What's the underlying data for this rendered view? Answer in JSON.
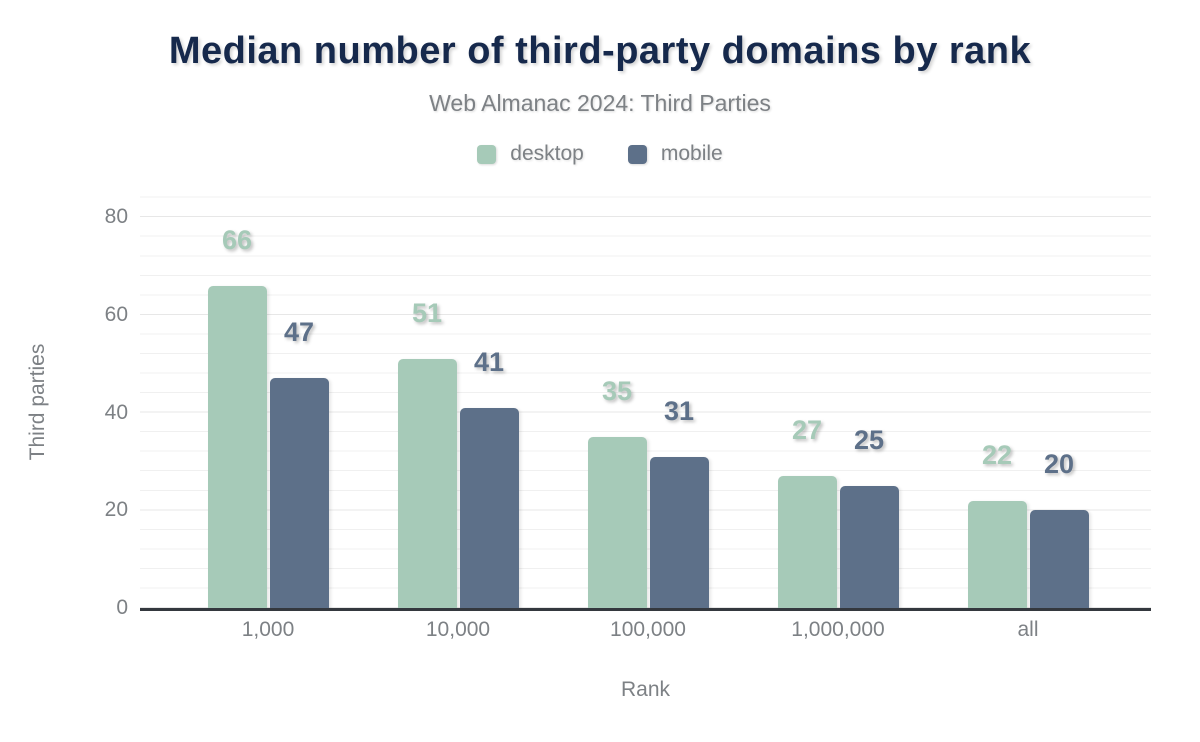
{
  "chart_data": {
    "type": "bar",
    "title": "Median number of third-party domains by rank",
    "subtitle": "Web Almanac 2024: Third Parties",
    "categories": [
      "1,000",
      "10,000",
      "100,000",
      "1,000,000",
      "all"
    ],
    "series": [
      {
        "name": "desktop",
        "color": "#a6cab8",
        "values": [
          66,
          51,
          35,
          27,
          22
        ]
      },
      {
        "name": "mobile",
        "color": "#5d7089",
        "values": [
          47,
          41,
          31,
          25,
          20
        ]
      }
    ],
    "xlabel": "Rank",
    "ylabel": "Third parties",
    "ylim": [
      0,
      80
    ],
    "yticks": [
      0,
      20,
      40,
      60,
      80
    ],
    "grid": "horizontal, minor lines every 4 units, major every 20",
    "legend_position": "top center",
    "value_labels": "above bars, colored per series"
  },
  "colors": {
    "title": "#16294c",
    "text_gray": "#7d8185",
    "axis_line": "#34383e",
    "grid_minor": "#f0f0f0",
    "grid_major": "#e7e7e7",
    "background": "#ffffff"
  }
}
